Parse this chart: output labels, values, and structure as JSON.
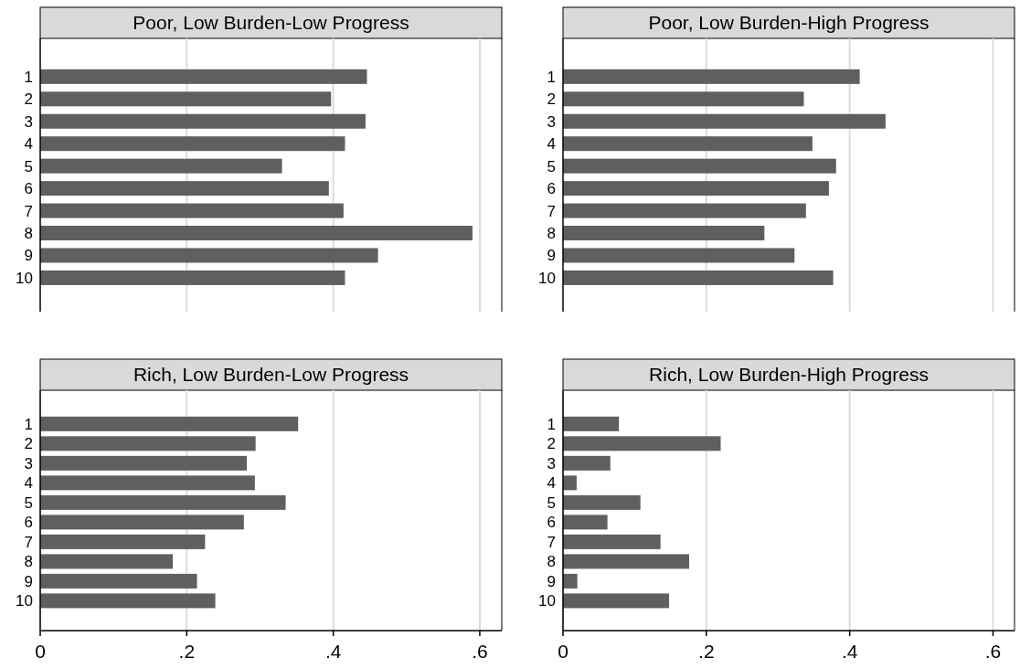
{
  "chart_data": [
    {
      "type": "bar",
      "orientation": "horizontal",
      "title": "Poor, Low Burden-Low Progress",
      "categories": [
        "1",
        "2",
        "3",
        "4",
        "5",
        "6",
        "7",
        "8",
        "9",
        "10"
      ],
      "values": [
        0.446,
        0.397,
        0.444,
        0.416,
        0.33,
        0.394,
        0.414,
        0.59,
        0.461,
        0.416
      ],
      "color": "#5f5f5f",
      "xlim": [
        0,
        0.63
      ],
      "xticks": [
        {
          "value": 0.2,
          "label": null
        },
        {
          "value": 0.4,
          "label": null
        },
        {
          "value": 0.6,
          "label": null
        }
      ],
      "grid": "x",
      "tick_labels": "y"
    },
    {
      "type": "bar",
      "orientation": "horizontal",
      "title": "Poor, Low Burden-High Progress",
      "categories": [
        "1",
        "2",
        "3",
        "4",
        "5",
        "6",
        "7",
        "8",
        "9",
        "10"
      ],
      "values": [
        0.414,
        0.336,
        0.45,
        0.348,
        0.381,
        0.371,
        0.339,
        0.281,
        0.323,
        0.377
      ],
      "color": "#5f5f5f",
      "xlim": [
        0,
        0.63
      ],
      "xticks": [
        {
          "value": 0.2,
          "label": null
        },
        {
          "value": 0.4,
          "label": null
        },
        {
          "value": 0.6,
          "label": null
        }
      ],
      "grid": "x",
      "tick_labels": "y"
    },
    {
      "type": "bar",
      "orientation": "horizontal",
      "title": "Rich, Low Burden-Low Progress",
      "categories": [
        "1",
        "2",
        "3",
        "4",
        "5",
        "6",
        "7",
        "8",
        "9",
        "10"
      ],
      "values": [
        0.352,
        0.294,
        0.282,
        0.293,
        0.335,
        0.278,
        0.225,
        0.181,
        0.214,
        0.239
      ],
      "color": "#5f5f5f",
      "xlim": [
        0,
        0.63
      ],
      "xticks": [
        0,
        {
          "value": 0.2,
          "label": ".2"
        },
        {
          "value": 0.4,
          "label": ".4"
        },
        {
          "value": 0.6,
          "label": ".6"
        }
      ],
      "grid": "x"
    },
    {
      "type": "bar",
      "orientation": "horizontal",
      "title": "Rich, Low Burden-High Progress",
      "categories": [
        "1",
        "2",
        "3",
        "4",
        "5",
        "6",
        "7",
        "8",
        "9",
        "10"
      ],
      "values": [
        0.078,
        0.22,
        0.066,
        0.019,
        0.108,
        0.062,
        0.136,
        0.176,
        0.02,
        0.148
      ],
      "color": "#5f5f5f",
      "xlim": [
        0,
        0.63
      ],
      "xticks": [
        0,
        {
          "value": 0.2,
          "label": ".2"
        },
        {
          "value": 0.4,
          "label": ".4"
        },
        {
          "value": 0.6,
          "label": ".6"
        }
      ],
      "grid": "x"
    }
  ]
}
